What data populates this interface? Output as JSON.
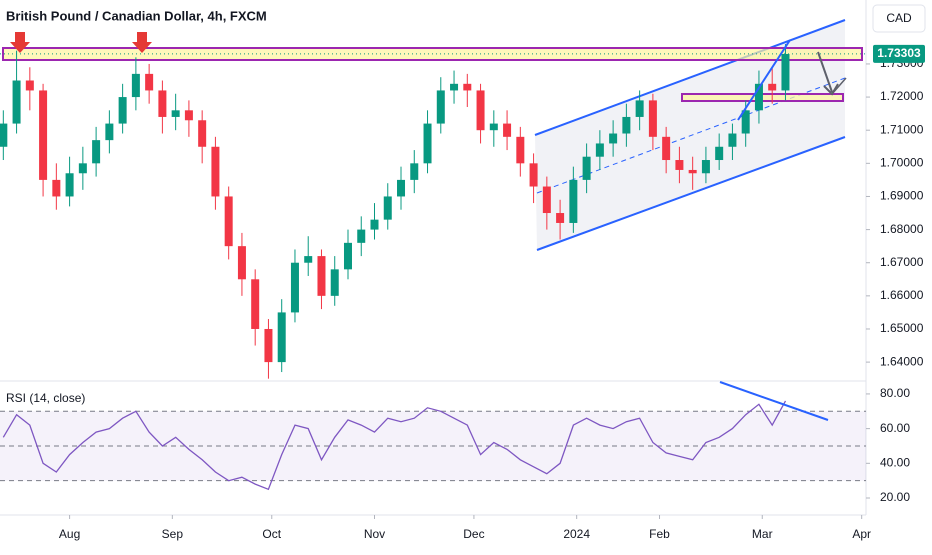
{
  "chart_data": [
    {
      "type": "candlestick",
      "title": "British Pound / Canadian Dollar, 4h, FXCM",
      "currency": "CAD",
      "last_price": {
        "value": 1.73303,
        "label": "1.73303"
      },
      "up_color": "#089981",
      "down_color": "#f23645",
      "x": [
        11,
        15,
        19,
        23,
        27,
        31,
        35,
        39,
        43,
        47,
        51,
        55,
        59,
        63,
        67,
        71,
        75,
        79,
        83,
        87,
        91,
        95,
        99,
        103,
        107,
        111,
        115,
        119,
        123,
        127,
        131,
        135,
        139,
        143,
        147,
        151,
        155,
        159,
        163,
        167,
        171,
        175,
        179,
        183,
        187,
        191,
        195,
        199,
        203,
        207,
        211,
        215,
        219,
        223,
        227,
        231,
        235,
        239,
        243,
        247
      ],
      "open": [
        1.705,
        1.712,
        1.725,
        1.722,
        1.695,
        1.69,
        1.697,
        1.7,
        1.707,
        1.712,
        1.72,
        1.727,
        1.722,
        1.714,
        1.716,
        1.713,
        1.705,
        1.69,
        1.675,
        1.665,
        1.65,
        1.64,
        1.655,
        1.67,
        1.672,
        1.66,
        1.668,
        1.676,
        1.68,
        1.683,
        1.69,
        1.695,
        1.7,
        1.712,
        1.722,
        1.724,
        1.722,
        1.71,
        1.712,
        1.708,
        1.7,
        1.693,
        1.685,
        1.682,
        1.695,
        1.702,
        1.706,
        1.709,
        1.714,
        1.719,
        1.708,
        1.701,
        1.698,
        1.697,
        1.701,
        1.705,
        1.709,
        1.716,
        1.724,
        1.722
      ],
      "high": [
        1.716,
        1.734,
        1.729,
        1.724,
        1.7,
        1.702,
        1.705,
        1.711,
        1.716,
        1.724,
        1.732,
        1.73,
        1.725,
        1.721,
        1.719,
        1.716,
        1.708,
        1.693,
        1.679,
        1.668,
        1.653,
        1.659,
        1.674,
        1.678,
        1.674,
        1.672,
        1.68,
        1.684,
        1.688,
        1.694,
        1.699,
        1.704,
        1.716,
        1.726,
        1.728,
        1.727,
        1.724,
        1.716,
        1.716,
        1.711,
        1.703,
        1.696,
        1.689,
        1.699,
        1.706,
        1.71,
        1.713,
        1.718,
        1.722,
        1.721,
        1.711,
        1.705,
        1.702,
        1.705,
        1.709,
        1.712,
        1.719,
        1.728,
        1.729,
        1.736
      ],
      "low": [
        1.701,
        1.709,
        1.716,
        1.69,
        1.686,
        1.687,
        1.692,
        1.696,
        1.703,
        1.709,
        1.716,
        1.718,
        1.709,
        1.71,
        1.708,
        1.7,
        1.686,
        1.671,
        1.66,
        1.645,
        1.635,
        1.637,
        1.652,
        1.666,
        1.656,
        1.657,
        1.665,
        1.672,
        1.677,
        1.68,
        1.686,
        1.691,
        1.697,
        1.709,
        1.718,
        1.717,
        1.706,
        1.705,
        1.704,
        1.696,
        1.688,
        1.68,
        1.677,
        1.679,
        1.691,
        1.698,
        1.702,
        1.705,
        1.71,
        1.704,
        1.697,
        1.694,
        1.692,
        1.694,
        1.698,
        1.701,
        1.705,
        1.712,
        1.718,
        1.719
      ],
      "close": [
        1.712,
        1.725,
        1.722,
        1.695,
        1.69,
        1.697,
        1.7,
        1.707,
        1.712,
        1.72,
        1.727,
        1.722,
        1.714,
        1.716,
        1.713,
        1.705,
        1.69,
        1.675,
        1.665,
        1.65,
        1.64,
        1.655,
        1.67,
        1.672,
        1.66,
        1.668,
        1.676,
        1.68,
        1.683,
        1.69,
        1.695,
        1.7,
        1.712,
        1.722,
        1.724,
        1.722,
        1.71,
        1.712,
        1.708,
        1.7,
        1.693,
        1.685,
        1.682,
        1.695,
        1.702,
        1.706,
        1.709,
        1.714,
        1.719,
        1.708,
        1.701,
        1.698,
        1.697,
        1.701,
        1.705,
        1.709,
        1.716,
        1.724,
        1.722,
        1.733
      ],
      "xlim": [
        10,
        271
      ],
      "xticks": [
        {
          "value": 31,
          "label": "Aug"
        },
        {
          "value": 62,
          "label": "Sep"
        },
        {
          "value": 92,
          "label": "Oct"
        },
        {
          "value": 123,
          "label": "Nov"
        },
        {
          "value": 153,
          "label": "Dec"
        },
        {
          "value": 184,
          "label": "2024"
        },
        {
          "value": 209,
          "label": "Feb"
        },
        {
          "value": 240,
          "label": "Mar"
        },
        {
          "value": 270,
          "label": "Apr"
        }
      ],
      "ylim": [
        1.6346,
        1.7493
      ],
      "yticks": [
        {
          "value": 1.64,
          "label": "1.64000"
        },
        {
          "value": 1.65,
          "label": "1.65000"
        },
        {
          "value": 1.66,
          "label": "1.66000"
        },
        {
          "value": 1.67,
          "label": "1.67000"
        },
        {
          "value": 1.68,
          "label": "1.68000"
        },
        {
          "value": 1.69,
          "label": "1.69000"
        },
        {
          "value": 1.7,
          "label": "1.70000"
        },
        {
          "value": 1.71,
          "label": "1.71000"
        },
        {
          "value": 1.72,
          "label": "1.72000"
        },
        {
          "value": 1.73,
          "label": "1.73000"
        }
      ]
    },
    {
      "type": "line",
      "title": "RSI (14, close)",
      "color": "#7e57c2",
      "x": [
        11,
        15,
        19,
        23,
        27,
        31,
        35,
        39,
        43,
        47,
        51,
        55,
        59,
        63,
        67,
        71,
        75,
        79,
        83,
        87,
        91,
        95,
        99,
        103,
        107,
        111,
        115,
        119,
        123,
        127,
        131,
        135,
        139,
        143,
        147,
        151,
        155,
        159,
        163,
        167,
        171,
        175,
        179,
        183,
        187,
        191,
        195,
        199,
        203,
        207,
        211,
        215,
        219,
        223,
        227,
        231,
        235,
        239,
        243,
        247
      ],
      "values": [
        55,
        68,
        62,
        40,
        35,
        45,
        52,
        58,
        60,
        66,
        70,
        58,
        50,
        55,
        48,
        42,
        35,
        30,
        32,
        28,
        25,
        45,
        62,
        60,
        42,
        55,
        65,
        62,
        58,
        66,
        64,
        66,
        72,
        70,
        66,
        62,
        45,
        52,
        48,
        42,
        38,
        34,
        40,
        62,
        66,
        62,
        60,
        64,
        66,
        52,
        46,
        44,
        42,
        52,
        55,
        60,
        68,
        74,
        62,
        76
      ],
      "levels": [
        30,
        50,
        70
      ],
      "ylim": [
        10.2,
        86.3
      ],
      "yticks": [
        {
          "value": 20,
          "label": "20.00"
        },
        {
          "value": 40,
          "label": "40.00"
        },
        {
          "value": 60,
          "label": "60.00"
        },
        {
          "value": 80,
          "label": "80.00"
        }
      ]
    }
  ]
}
